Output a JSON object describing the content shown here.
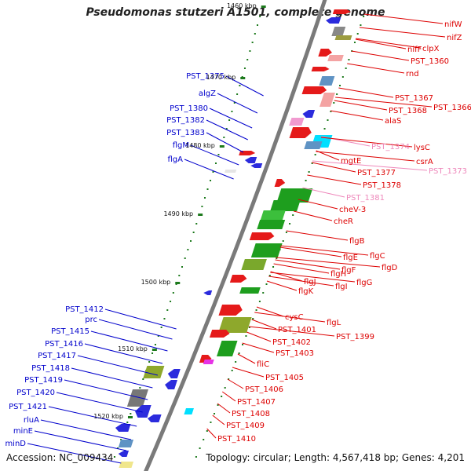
{
  "title": "Pseudomonas stutzeri A1501, complete genome",
  "accession": "Accession: NC_009434",
  "topology": "Topology: circular; Length: 4,567,418 bp; Genes: 4,201",
  "colors": {
    "backbone": "#7a7a7a",
    "tick": "#1d7a1d",
    "right_label": "#dd0000",
    "right_label_faint": "#ee88bb",
    "left_label": "#0000cc"
  },
  "kbp_labels": [
    "1460 kbp",
    "1470 kbp",
    "1480 kbp",
    "1490 kbp",
    "1500 kbp",
    "1510 kbp",
    "1520 kbp"
  ],
  "left_labels": [
    "PST_1375",
    "algZ",
    "PST_1380",
    "PST_1382",
    "PST_1383",
    "flgM",
    "flgA",
    "PST_1412",
    "prc",
    "PST_1415",
    "PST_1416",
    "PST_1417",
    "PST_1418",
    "PST_1419",
    "PST_1420",
    "PST_1421",
    "rluA",
    "minE",
    "minD"
  ],
  "right_labels": [
    {
      "text": "nifW",
      "faint": false
    },
    {
      "text": "nifZ",
      "faint": false
    },
    {
      "text": "nifF",
      "faint": false
    },
    {
      "text": "clpX",
      "faint": false
    },
    {
      "text": "PST_1360",
      "faint": false
    },
    {
      "text": "rnd",
      "faint": false
    },
    {
      "text": "PST_1367",
      "faint": false
    },
    {
      "text": "PST_1366",
      "faint": false
    },
    {
      "text": "PST_1368",
      "faint": false
    },
    {
      "text": "alaS",
      "faint": false
    },
    {
      "text": "PST_1374",
      "faint": true
    },
    {
      "text": "lysC",
      "faint": false
    },
    {
      "text": "csrA",
      "faint": false
    },
    {
      "text": "PST_1373",
      "faint": true
    },
    {
      "text": "mgtE",
      "faint": false
    },
    {
      "text": "PST_1377",
      "faint": false
    },
    {
      "text": "PST_1378",
      "faint": false
    },
    {
      "text": "PST_1381",
      "faint": true
    },
    {
      "text": "cheV-3",
      "faint": false
    },
    {
      "text": "cheR",
      "faint": false
    },
    {
      "text": "flgB",
      "faint": false
    },
    {
      "text": "flgC",
      "faint": false
    },
    {
      "text": "flgD",
      "faint": false
    },
    {
      "text": "flgE",
      "faint": false
    },
    {
      "text": "flgF",
      "faint": false
    },
    {
      "text": "flgH",
      "faint": false
    },
    {
      "text": "flgG",
      "faint": false
    },
    {
      "text": "flgJ",
      "faint": false
    },
    {
      "text": "flgI",
      "faint": false
    },
    {
      "text": "flgK",
      "faint": false
    },
    {
      "text": "cysC",
      "faint": false
    },
    {
      "text": "flgL",
      "faint": false
    },
    {
      "text": "PST_1401",
      "faint": false
    },
    {
      "text": "PST_1399",
      "faint": false
    },
    {
      "text": "PST_1402",
      "faint": false
    },
    {
      "text": "PST_1403",
      "faint": false
    },
    {
      "text": "fliC",
      "faint": false
    },
    {
      "text": "PST_1405",
      "faint": false
    },
    {
      "text": "PST_1406",
      "faint": false
    },
    {
      "text": "PST_1407",
      "faint": false
    },
    {
      "text": "PST_1408",
      "faint": false
    },
    {
      "text": "PST_1409",
      "faint": false
    },
    {
      "text": "PST_1410",
      "faint": false
    }
  ]
}
